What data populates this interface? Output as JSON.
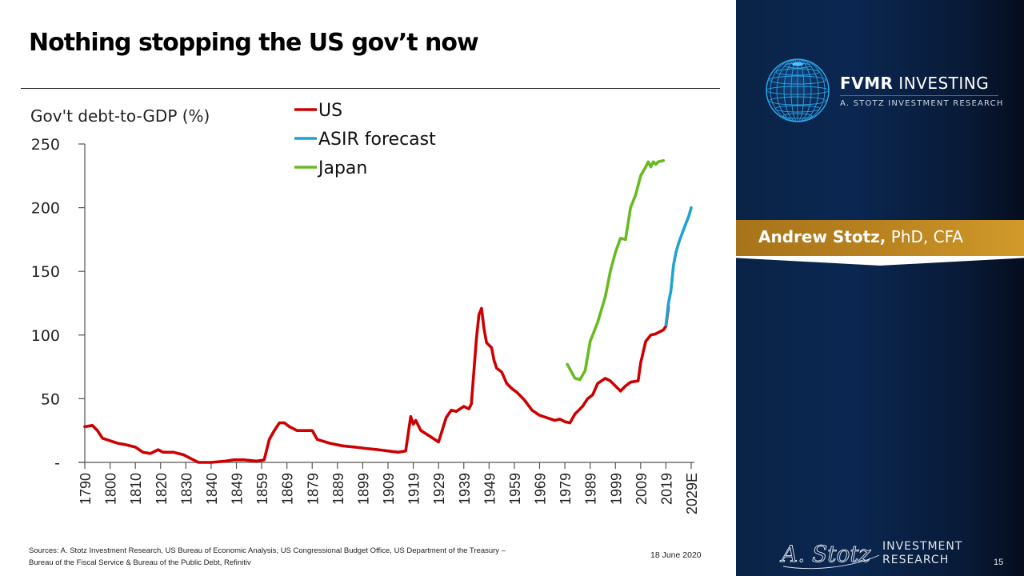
{
  "slide": {
    "title": "Nothing stopping the US gov’t now",
    "sources_line1": "Sources: A. Stotz Investment Research, US Bureau of Economic Analysis, US Congressional Budget Office, US Department of the Treasury –",
    "sources_line2": "Bureau of the Fiscal Service & Bureau of the Public Debt, Refinitiv",
    "date": "18 June 2020",
    "page_number": "15"
  },
  "sidebar": {
    "logo_name_bold": "FVMR",
    "logo_name_rest": " INVESTING",
    "logo_subtitle": "A. STOTZ INVESTMENT RESEARCH",
    "author_name": "Andrew Stotz,",
    "author_credentials": " PhD, CFA",
    "footer_logo_script": "A. Stotz",
    "footer_logo_line1": "INVESTMENT",
    "footer_logo_line2": "RESEARCH",
    "colors": {
      "banner": "#b8821f",
      "background": "#0b2751"
    }
  },
  "chart_data": {
    "type": "line",
    "title": "",
    "ylabel": "Gov't debt-to-GDP (%)",
    "xlabel": "",
    "ylim": [
      0,
      250
    ],
    "xlim": [
      1790,
      2029
    ],
    "yticks": [
      0,
      50,
      100,
      150,
      200,
      250
    ],
    "ytick_labels": [
      "-",
      "50",
      "100",
      "150",
      "200",
      "250"
    ],
    "xticks": [
      1790,
      1800,
      1810,
      1820,
      1830,
      1840,
      1849,
      1859,
      1869,
      1879,
      1889,
      1899,
      1909,
      1919,
      1929,
      1939,
      1949,
      1959,
      1969,
      1979,
      1989,
      1999,
      2009,
      2019,
      2029
    ],
    "xtick_labels": [
      "1790",
      "1800",
      "1810",
      "1820",
      "1830",
      "1840",
      "1849",
      "1859",
      "1869",
      "1879",
      "1889",
      "1899",
      "1909",
      "1919",
      "1929",
      "1939",
      "1949",
      "1959",
      "1969",
      "1979",
      "1989",
      "1999",
      "2009",
      "2019",
      "2029E"
    ],
    "grid": false,
    "legend_position": "top-center",
    "series": [
      {
        "name": "US",
        "color": "#cc0000",
        "x": [
          1790,
          1793,
          1795,
          1797,
          1800,
          1803,
          1806,
          1810,
          1813,
          1816,
          1819,
          1821,
          1825,
          1829,
          1833,
          1835,
          1840,
          1845,
          1848,
          1852,
          1857,
          1860,
          1862,
          1864,
          1866,
          1868,
          1870,
          1873,
          1877,
          1879,
          1881,
          1886,
          1891,
          1896,
          1900,
          1905,
          1909,
          1913,
          1916,
          1918,
          1919,
          1920,
          1922,
          1926,
          1929,
          1932,
          1934,
          1936,
          1939,
          1941,
          1942,
          1944,
          1945,
          1946,
          1947,
          1948,
          1950,
          1951,
          1952,
          1954,
          1956,
          1958,
          1960,
          1963,
          1966,
          1969,
          1972,
          1975,
          1977,
          1979,
          1981,
          1983,
          1986,
          1988,
          1990,
          1992,
          1995,
          1997,
          1999,
          2001,
          2003,
          2005,
          2008,
          2009,
          2011,
          2013,
          2015,
          2017,
          2018,
          2019,
          2020
        ],
        "values": [
          28,
          29,
          25,
          19,
          17,
          15,
          14,
          12,
          8,
          7,
          10,
          8,
          8,
          6,
          2,
          0,
          0,
          1,
          2,
          2,
          1,
          2,
          18,
          25,
          31,
          31,
          28,
          25,
          25,
          25,
          18,
          15,
          13,
          12,
          11,
          10,
          9,
          8,
          9,
          36,
          30,
          33,
          25,
          20,
          16,
          35,
          41,
          40,
          44,
          42,
          46,
          97,
          116,
          121,
          105,
          94,
          90,
          80,
          74,
          71,
          62,
          58,
          55,
          49,
          41,
          37,
          35,
          33,
          34,
          32,
          31,
          38,
          44,
          50,
          53,
          62,
          66,
          64,
          60,
          56,
          60,
          63,
          64,
          78,
          95,
          100,
          101,
          103,
          104,
          107,
          122
        ]
      },
      {
        "name": "ASIR forecast",
        "color": "#1fa3d0",
        "x": [
          2019,
          2020,
          2021,
          2022,
          2023,
          2024,
          2026,
          2028,
          2029
        ],
        "values": [
          108,
          125,
          135,
          155,
          165,
          172,
          183,
          193,
          200
        ]
      },
      {
        "name": "Japan",
        "color": "#66bb22",
        "x": [
          1980,
          1983,
          1985,
          1987,
          1989,
          1992,
          1995,
          1997,
          1999,
          2001,
          2003,
          2005,
          2007,
          2009,
          2011,
          2012,
          2013,
          2014,
          2015,
          2016,
          2018
        ],
        "values": [
          77,
          66,
          65,
          72,
          95,
          110,
          130,
          150,
          165,
          176,
          175,
          200,
          210,
          225,
          232,
          236,
          232,
          236,
          234,
          236,
          237
        ]
      }
    ]
  }
}
